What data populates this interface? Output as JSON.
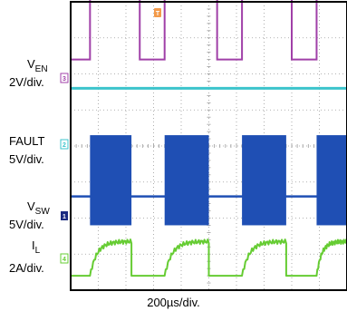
{
  "chart_data": {
    "type": "line",
    "title": "",
    "xlabel": "200µs/div.",
    "ylabel": "",
    "grid": true,
    "x_divisions": 10,
    "y_divisions": 8,
    "trigger_marker": "T",
    "channels": [
      {
        "id": "3",
        "label_main": "V",
        "label_sub": "EN",
        "scale": "2V/div.",
        "color": "#a040a8",
        "marker_color": "#a040a8",
        "description_waveform": "square",
        "low_level_div": 6.4,
        "high_level_div": 8.8,
        "pulses_div": [
          [
            0.7,
            2.5
          ],
          [
            3.4,
            5.3
          ],
          [
            6.2,
            8.0
          ],
          [
            8.9,
            10.0
          ]
        ]
      },
      {
        "id": "2",
        "label_main": "FAULT",
        "label_sub": "",
        "scale": "5V/div.",
        "color": "#3cc4cc",
        "marker_color": "#3cc4cc",
        "description_waveform": "flat",
        "level_div": 5.6
      },
      {
        "id": "1",
        "label_main": "V",
        "label_sub": "SW",
        "scale": "5V/div.",
        "color": "#1f4fb4",
        "marker_color": "#1a2a80",
        "description_waveform": "switching bursts",
        "baseline_div": 2.6,
        "burst_low_div": 1.8,
        "burst_high_div": 4.3,
        "bursts_div": [
          [
            0.7,
            2.2
          ],
          [
            3.4,
            5.0
          ],
          [
            6.2,
            7.8
          ],
          [
            8.9,
            10.0
          ]
        ]
      },
      {
        "id": "4",
        "label_main": "I",
        "label_sub": "L",
        "scale": "2A/div.",
        "color": "#66cc33",
        "marker_color": "#66cc33",
        "description_waveform": "inductor current ramps",
        "baseline_div": 0.4,
        "peak_div": 1.35,
        "ramps_div": [
          [
            0.7,
            2.2
          ],
          [
            3.4,
            5.0
          ],
          [
            6.2,
            7.8
          ],
          [
            8.9,
            10.0
          ]
        ]
      }
    ]
  }
}
